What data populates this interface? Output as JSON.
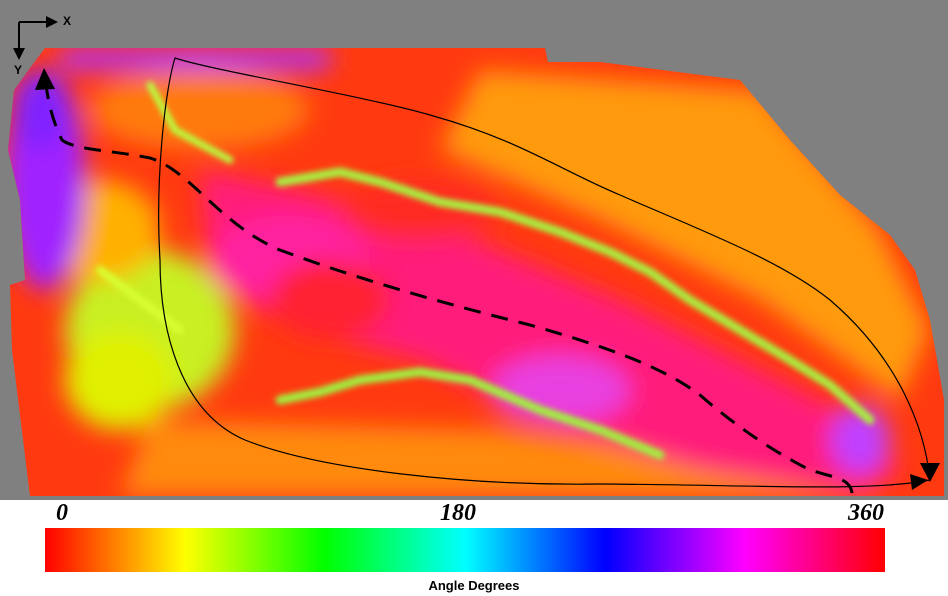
{
  "chart_data": {
    "type": "heatmap",
    "title": "",
    "axes": {
      "x_label": "X",
      "y_label": "Y"
    },
    "colorbar": {
      "label": "Angle Degrees",
      "min": 0,
      "mid": 180,
      "max": 360,
      "tick_labels": [
        "0",
        "180",
        "360"
      ],
      "colormap": [
        "#ff0000",
        "#ff8000",
        "#ffff00",
        "#80ff00",
        "#00ff00",
        "#00ff80",
        "#00ffff",
        "#0080ff",
        "#0000ff",
        "#8000ff",
        "#ff00ff",
        "#ff0080",
        "#ff0000"
      ]
    },
    "background_color": "#808080",
    "overlays": [
      {
        "name": "dashed-path",
        "style": "dashed",
        "color": "#000000"
      },
      {
        "name": "solid-loop-path",
        "style": "solid",
        "color": "#000000"
      }
    ]
  }
}
